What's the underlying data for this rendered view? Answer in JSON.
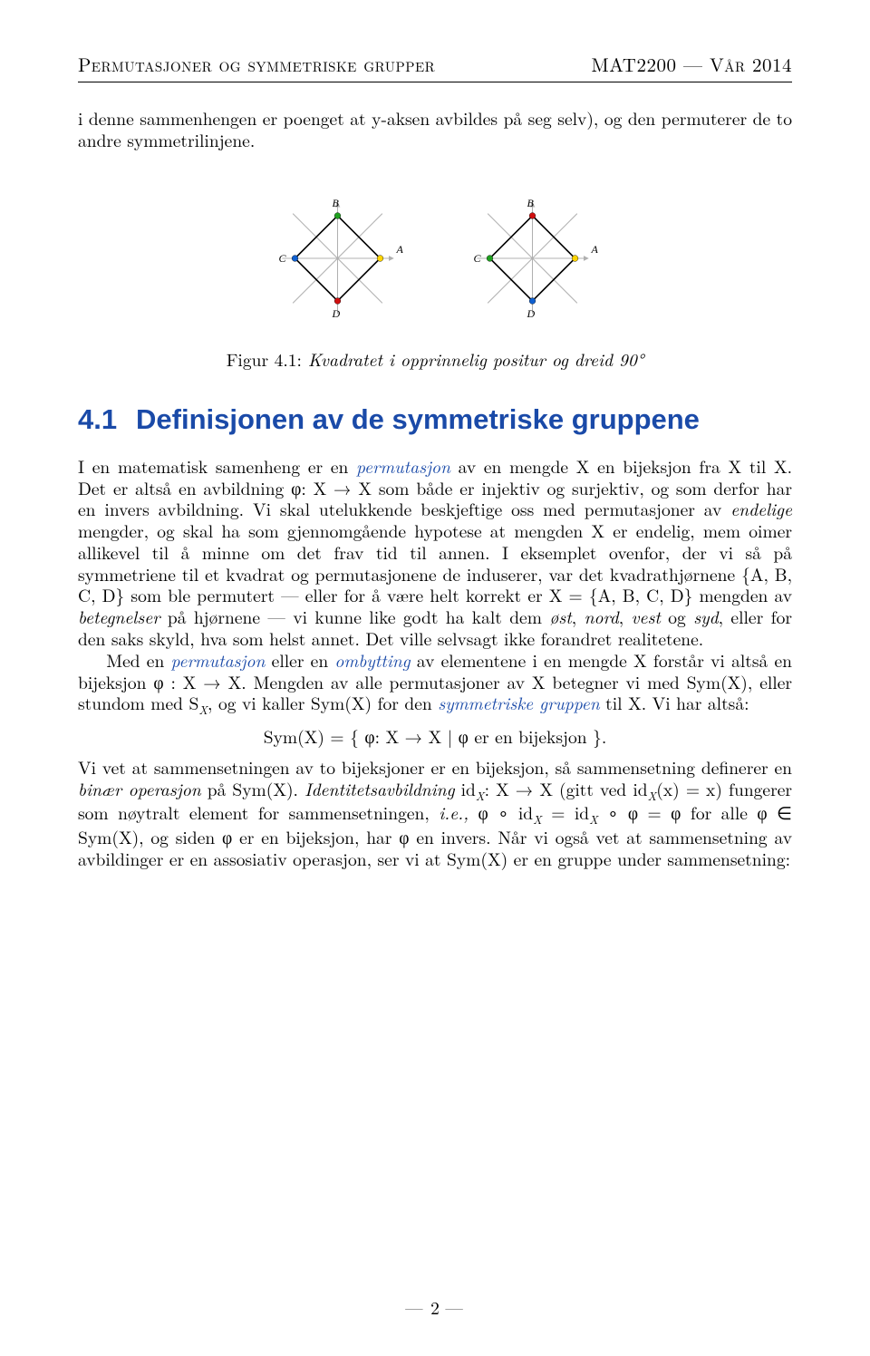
{
  "header": {
    "left": "Permutasjoner og symmetriske grupper",
    "right": "MAT2200 — Vår 2014"
  },
  "intro": "i denne sammenhengen er poenget at y-aksen avbildes på seg selv), og den permuterer de to andre symmetrilinjene.",
  "figure": {
    "common": {
      "labels": {
        "A": "A",
        "B": "B",
        "C": "C",
        "D": "D"
      },
      "axis_color": "#b0b0b0",
      "diag_color": "#b0b0b0",
      "square_stroke": "#000000",
      "square_stroke_width": 1.6,
      "dot_radius": 3.4,
      "label_fontsize": 12
    },
    "left": {
      "dots": {
        "A": "#ffd400",
        "B": "#1fa01f",
        "C": "#1060d0",
        "D": "#d01010"
      }
    },
    "right": {
      "dots": {
        "A": "#ffd400",
        "B": "#d01010",
        "C": "#1fa01f",
        "D": "#1060d0"
      }
    },
    "caption_label": "Figur 4.1:",
    "caption_text": " Kvadratet i opprinnelig positur og dreid 90°"
  },
  "section": {
    "number": "4.1",
    "title": "Definisjonen av de symmetriske gruppene"
  },
  "body": {
    "p1a": "I en matematisk samenheng er en ",
    "perm1": "permutasjon",
    "p1b": " av en mengde X en bijeksjon fra X til X. Det er altså en avbildning φ: X → X som både er injektiv og surjektiv, og som derfor har en invers avbildning. Vi skal utelukkende beskjeftige oss med permutasjoner av ",
    "endelige": "endelige",
    "p1c": " mengder, og skal ha som gjennomgående hypotese at mengden X er endelig, mem oimer allikevel til å minne om det frav tid til annen. I eksemplet ovenfor, der vi så på symmetriene til et kvadrat og permutasjonene de induserer, var det kvadrathjørnene {A, B, C, D} som ble permutert — eller for å være helt korrekt er X = {A, B, C, D} mengden av ",
    "betegnelser": "betegnelser",
    "p1d": " på hjørnene — vi kunne like godt ha kalt dem ",
    "ost": "øst",
    "comma1": ", ",
    "nord": "nord",
    "comma2": ", ",
    "vest": "vest",
    "p1e": " og ",
    "syd": "syd",
    "p1f": ", eller for den saks skyld, hva som helst annet. Det ville selvsagt ikke forandret realitetene.",
    "p2a": "Med en ",
    "perm2": "permutasjon",
    "p2b": " eller en ",
    "omb": "ombytting",
    "p2c": " av elementene i en mengde X forstår vi altså en bijeksjon φ : X → X. Mengden av alle permutasjoner av X betegner vi med Sym(X), eller stundom med S",
    "subX": "X",
    "p2d": ", og vi kaller Sym(X) for den ",
    "symgrp": "symmetriske gruppen",
    "p2e": " til X. Vi har altså:",
    "display": "Sym(X) = { φ: X → X | φ  er en bijeksjon }.",
    "p3a": "Vi vet at sammensetningen av to bijeksjoner er en bijeksjon, så sammensetning definerer en ",
    "binop": "binær operasjon",
    "p3b": " på Sym(X). ",
    "idavb": "Identitetsavbildning",
    "p3c": " id",
    "p3d": ": X → X (gitt ved id",
    "p3e": "(x) = x) fungerer som nøytralt element for sammensetningen, ",
    "ie": "i.e.,",
    "p3f": "  φ ∘ id",
    "p3g": " = id",
    "p3h": " ∘ φ = φ for alle φ ∈ Sym(X), og siden φ er en bijeksjon, har φ en invers. Når vi også vet at sammensetning av avbildinger er en assosiativ operasjon, ser vi at Sym(X) er en gruppe under sammensetning:"
  },
  "footer": {
    "page": "2"
  }
}
